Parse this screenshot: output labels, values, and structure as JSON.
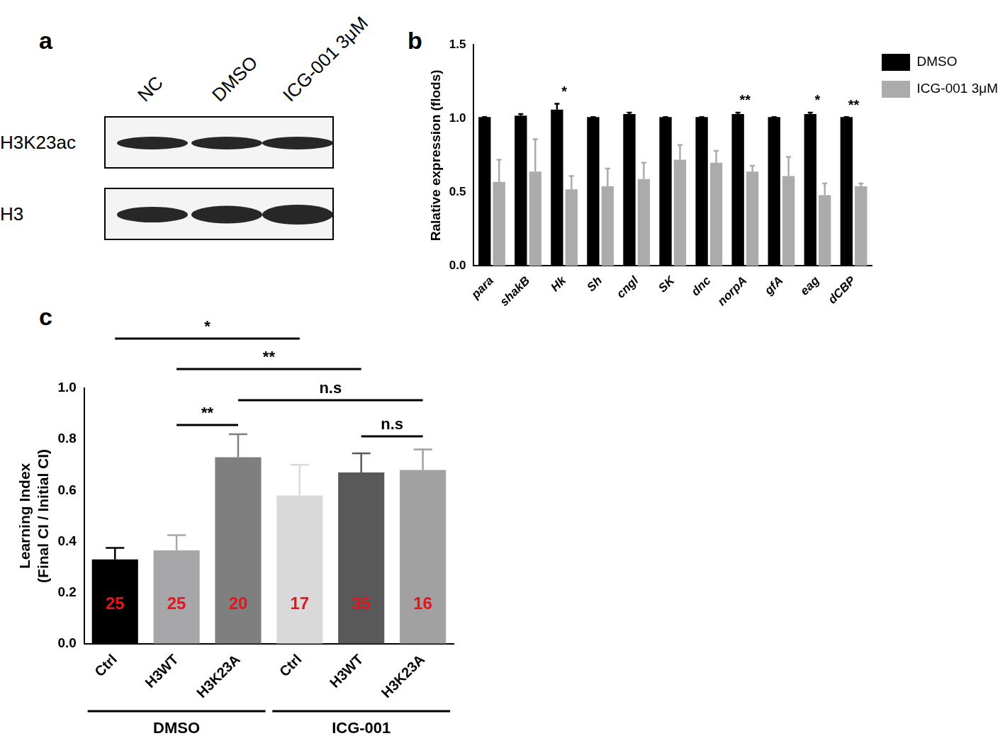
{
  "panel_labels": [
    "a",
    "b",
    "c"
  ],
  "blot": {
    "lanes": [
      "NC",
      "DMSO",
      "ICG-001 3μM"
    ],
    "rows": [
      "H3K23ac",
      "H3"
    ]
  },
  "chart_data": [
    {
      "type": "bar",
      "categories": [
        "para",
        "shakB",
        "Hk",
        "Sh",
        "cngl",
        "SK",
        "dnc",
        "norpA",
        "gfA",
        "eag",
        "dCBP"
      ],
      "y_label": "Ralative expression (flods)",
      "ylim": [
        0,
        1.5
      ],
      "yticks": [
        {
          "value": 0,
          "label": "0.0"
        },
        {
          "value": 0.5,
          "label": "0.5"
        },
        {
          "value": 1,
          "label": "1.0"
        },
        {
          "value": 1.5,
          "label": "1.5"
        }
      ],
      "grid": false,
      "legend": "upper right",
      "series": [
        {
          "name": "DMSO",
          "color": "#000000",
          "values": [
            1.01,
            1.02,
            1.06,
            1.01,
            1.03,
            1.01,
            1.01,
            1.03,
            1.01,
            1.03,
            1.01
          ],
          "errors": [
            0,
            0.01,
            0.04,
            0,
            0.01,
            0,
            0,
            0.01,
            0,
            0.01,
            0
          ]
        },
        {
          "name": "ICG-001 3μM",
          "color": "#ababab",
          "values": [
            0.57,
            0.64,
            0.52,
            0.54,
            0.59,
            0.72,
            0.7,
            0.64,
            0.61,
            0.48,
            0.54
          ],
          "errors": [
            0.15,
            0.22,
            0.09,
            0.12,
            0.11,
            0.1,
            0.08,
            0.04,
            0.13,
            0.08,
            0.02
          ]
        }
      ],
      "annotations": [
        {
          "category": "Hk",
          "text": "*"
        },
        {
          "category": "norpA",
          "text": "**"
        },
        {
          "category": "eag",
          "text": "*"
        },
        {
          "category": "dCBP",
          "text": "**"
        }
      ]
    },
    {
      "type": "bar",
      "categories": [
        "Ctrl",
        "H3WT",
        "H3K23A",
        "Ctrl",
        "H3WT",
        "H3K23A"
      ],
      "y_label": "Learning Index\n(Final CI / Initial CI)",
      "ylim": [
        0,
        1
      ],
      "yticks": [
        {
          "value": 0,
          "label": "0.0"
        },
        {
          "value": 0.2,
          "label": "0.2"
        },
        {
          "value": 0.4,
          "label": "0.4"
        },
        {
          "value": 0.6,
          "label": "0.6"
        },
        {
          "value": 0.8,
          "label": "0.8"
        },
        {
          "value": 1,
          "label": "1.0"
        }
      ],
      "grid": false,
      "values": [
        0.33,
        0.365,
        0.73,
        0.58,
        0.67,
        0.68
      ],
      "errors": [
        0.045,
        0.06,
        0.09,
        0.12,
        0.075,
        0.08
      ],
      "colors": [
        "#000000",
        "#a7a7a9",
        "#7f7f7f",
        "#d9d9d9",
        "#595959",
        "#a1a1a1"
      ],
      "n": [
        25,
        25,
        20,
        17,
        35,
        16
      ],
      "groups": [
        {
          "label": "DMSO",
          "members": [
            0,
            1,
            2
          ]
        },
        {
          "label": "ICG-001",
          "members": [
            3,
            4,
            5
          ]
        }
      ],
      "comparisons": [
        {
          "between": [
            0,
            3
          ],
          "text": "*"
        },
        {
          "between": [
            1,
            4
          ],
          "text": "**"
        },
        {
          "between": [
            2,
            5
          ],
          "text": "n.s"
        },
        {
          "between": [
            1,
            2
          ],
          "text": "**"
        },
        {
          "between": [
            4,
            5
          ],
          "text": "n.s"
        }
      ]
    }
  ]
}
